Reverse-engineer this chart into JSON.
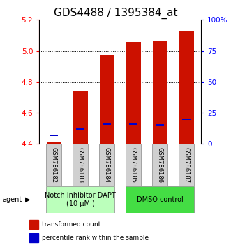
{
  "title": "GDS4488 / 1395384_at",
  "samples": [
    "GSM786182",
    "GSM786183",
    "GSM786184",
    "GSM786185",
    "GSM786186",
    "GSM786187"
  ],
  "bar_bottom": 4.4,
  "bar_tops": [
    4.415,
    4.74,
    4.97,
    5.055,
    5.06,
    5.13
  ],
  "blue_values": [
    4.455,
    4.495,
    4.525,
    4.525,
    4.52,
    4.555
  ],
  "ylim_left": [
    4.4,
    5.2
  ],
  "ylim_right": [
    0,
    100
  ],
  "yticks_left": [
    4.4,
    4.6,
    4.8,
    5.0,
    5.2
  ],
  "yticks_right": [
    0,
    25,
    50,
    75,
    100
  ],
  "ytick_labels_right": [
    "0",
    "25",
    "50",
    "75",
    "100%"
  ],
  "bar_color": "#cc1100",
  "blue_color": "#0000cc",
  "group1_label": "Notch inhibitor DAPT\n(10 μM.)",
  "group2_label": "DMSO control",
  "group1_color": "#bbffbb",
  "group2_color": "#44dd44",
  "group1_samples": [
    0,
    1,
    2
  ],
  "group2_samples": [
    3,
    4,
    5
  ],
  "legend_bar_label": "transformed count",
  "legend_blue_label": "percentile rank within the sample",
  "agent_label": "agent",
  "bar_width": 0.55,
  "title_fontsize": 11,
  "tick_fontsize": 7.5,
  "sample_fontsize": 6,
  "group_fontsize": 7
}
